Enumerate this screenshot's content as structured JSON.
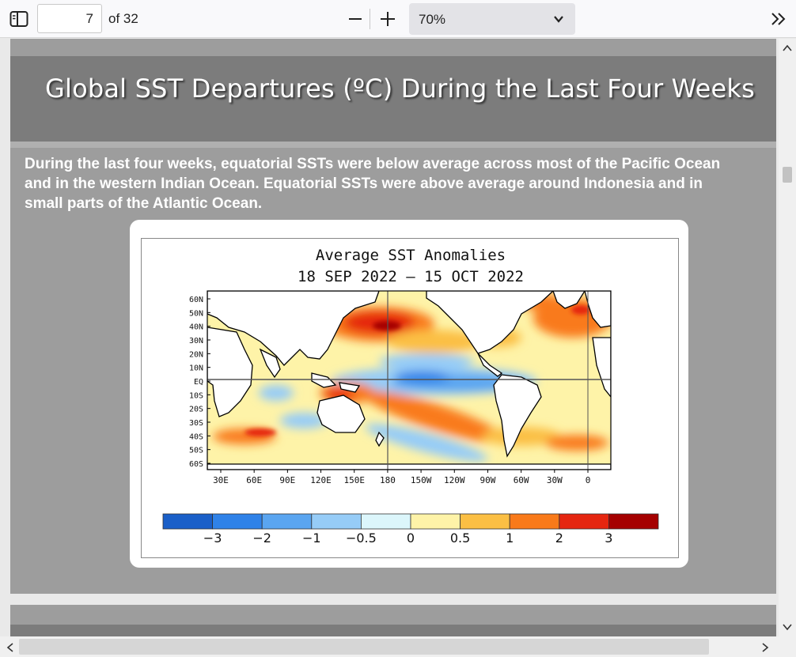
{
  "toolbar": {
    "sidebar_icon": "sidebar-toggle-icon",
    "page_number": "7",
    "page_count_label": "of 32",
    "zoom_out_icon": "minus-icon",
    "zoom_in_icon": "plus-icon",
    "zoom_value": "70%",
    "more_icon": "double-chevron-right-icon"
  },
  "slide": {
    "title": "Global SST Departures (ºC) During the Last Four Weeks",
    "body_lines": [
      "During the last four weeks, equatorial SSTs were below average across most of the Pacific Ocean",
      "and in the western Indian Ocean.   Equatorial SSTs were above average around Indonesia and in",
      "small parts of the Atlantic Ocean."
    ],
    "colors": {
      "page": "#9d9d9d",
      "title_band": "#7c7c7c"
    }
  },
  "figure": {
    "title_line1": "Average SST Anomalies",
    "title_line2": "18 SEP 2022 – 15 OCT 2022",
    "lat_labels": [
      "60N",
      "50N",
      "40N",
      "30N",
      "20N",
      "10N",
      "EQ",
      "10S",
      "20S",
      "30S",
      "40S",
      "50S",
      "60S"
    ],
    "lon_labels": [
      "30E",
      "60E",
      "90E",
      "120E",
      "150E",
      "180",
      "150W",
      "120W",
      "90W",
      "60W",
      "30W",
      "0"
    ],
    "colorbar": {
      "colors": [
        "#1a5fc8",
        "#2f82e8",
        "#5aa5f0",
        "#96ccf7",
        "#dcf6fb",
        "#fef3a8",
        "#fbbf44",
        "#f97a1a",
        "#e52610",
        "#a50000"
      ],
      "labels": [
        "−3",
        "−2",
        "−1",
        "−0.5",
        "0",
        "0.5",
        "1",
        "2",
        "3"
      ]
    }
  }
}
